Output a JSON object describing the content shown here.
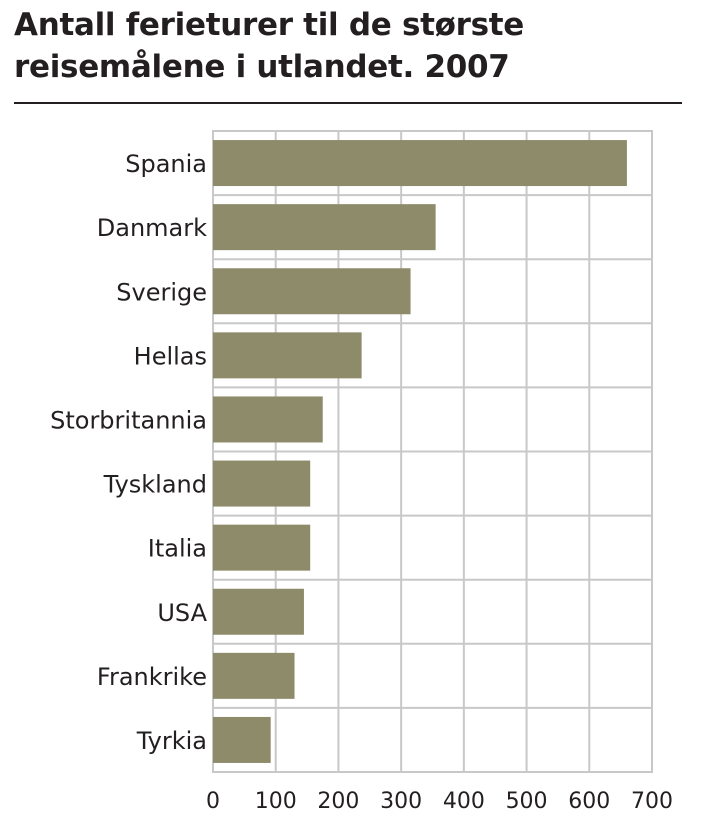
{
  "chart_data": {
    "type": "bar",
    "orientation": "horizontal",
    "title": "Antall ferieturer til de største reisemålene i utlandet. 2007",
    "title_lines": [
      "Antall ferieturer til de største",
      "reisemålene i utlandet. 2007"
    ],
    "categories": [
      "Spania",
      "Danmark",
      "Sverige",
      "Hellas",
      "Storbritannia",
      "Tyskland",
      "Italia",
      "USA",
      "Frankrike",
      "Tyrkia"
    ],
    "values": [
      660,
      355,
      315,
      237,
      175,
      155,
      155,
      145,
      130,
      92
    ],
    "xlim": [
      0,
      700
    ],
    "xticks": [
      0,
      100,
      200,
      300,
      400,
      500,
      600,
      700
    ],
    "xtick_labels": [
      "0",
      "100",
      "200",
      "300",
      "400",
      "500",
      "600",
      "700"
    ],
    "xlabel": "",
    "ylabel": "",
    "grid": true,
    "bar_color": "#8e8b6a",
    "grid_color": "#c8c8c8"
  }
}
